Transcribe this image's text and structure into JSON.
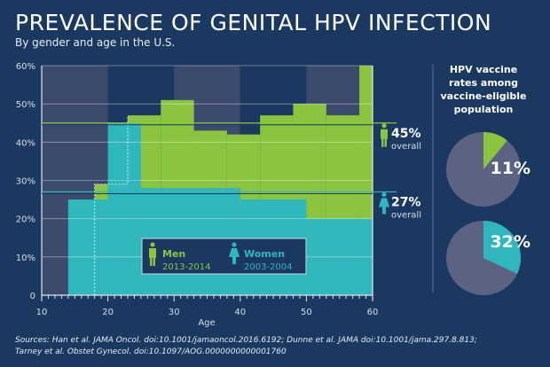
{
  "title": "PREVALENCE OF GENITAL HPV INFECTION",
  "subtitle": "By gender and age in the U.S.",
  "sources_line1": "Sources: Han et al. JAMA Oncol. doi:10.1001/jamaoncol.2016.6192; Dunne et al. JAMA doi:10.1001/jama.297.8.813;",
  "sources_line2": "Tarney et al. Obstet Gynecol. doi:10.1097/AOG.0000000000001760",
  "colors": {
    "background": "#1b3960",
    "band": "#3c4a6e",
    "men": "#8bc53f",
    "women": "#2fb7bc",
    "pie_rest": "#5c6282"
  },
  "chart_data": [
    {
      "type": "area",
      "xlabel": "Age",
      "ylabel": "",
      "xlim": [
        10,
        60
      ],
      "ylim": [
        0,
        60
      ],
      "x_ticks": [
        "10",
        "20",
        "30",
        "40",
        "50",
        "60"
      ],
      "y_ticks": [
        "0",
        "10%",
        "20%",
        "30%",
        "40%",
        "50%",
        "60%"
      ],
      "grid": true,
      "legend_placement": "bottom-center",
      "series": [
        {
          "name": "Men",
          "period": "2013-2014",
          "steps": [
            [
              18,
              20,
              29
            ],
            [
              20,
              23,
              29
            ],
            [
              23,
              28,
              47
            ],
            [
              28,
              33,
              51
            ],
            [
              33,
              38,
              43
            ],
            [
              38,
              43,
              42
            ],
            [
              43,
              48,
              47
            ],
            [
              48,
              53,
              50
            ],
            [
              53,
              58,
              47
            ],
            [
              58,
              60,
              60
            ]
          ],
          "overall": 45,
          "overall_label": "45%",
          "overall_text": "overall"
        },
        {
          "name": "Women",
          "period": "2003-2004",
          "steps": [
            [
              14,
              20,
              25
            ],
            [
              20,
              25,
              45
            ],
            [
              25,
              40,
              28
            ],
            [
              40,
              50,
              25
            ],
            [
              50,
              60,
              20
            ]
          ],
          "overall": 27,
          "overall_label": "27%",
          "overall_text": "overall"
        }
      ]
    },
    {
      "type": "pie",
      "title": "HPV vaccine rates among vaccine-eligible population",
      "title_lines": [
        "HPV vaccine",
        "rates among",
        "vaccine-eligible",
        "population"
      ],
      "pies": [
        {
          "group": "Men",
          "value": 11,
          "label": "11%"
        },
        {
          "group": "Women",
          "value": 32,
          "label": "32%"
        }
      ]
    }
  ]
}
